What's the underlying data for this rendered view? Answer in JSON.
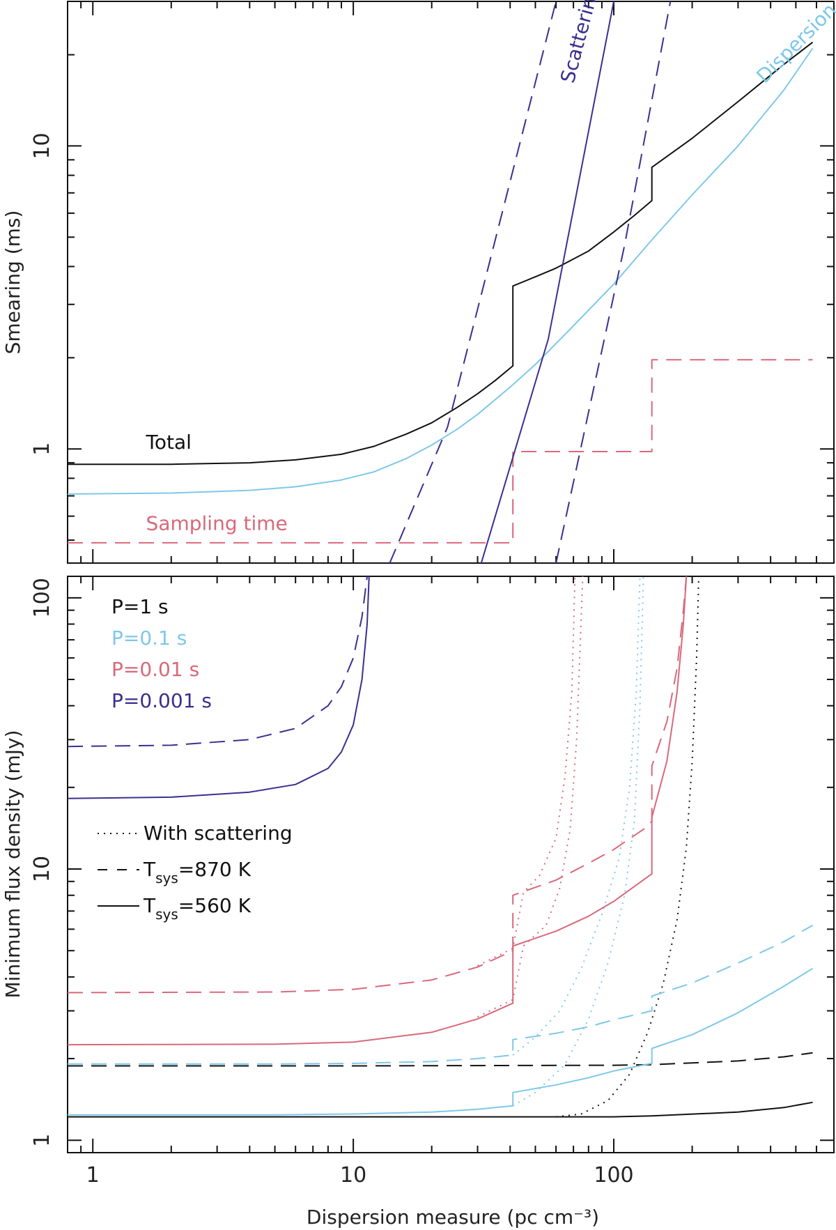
{
  "colors": {
    "black": "#111111",
    "light_blue": "#7ec8ea",
    "pink": "#d9687a",
    "navy": "#3a2f8f"
  },
  "chart_data": [
    {
      "type": "line",
      "panel": "top",
      "xscale": "log",
      "yscale": "log",
      "xlim": [
        0.8,
        700
      ],
      "ylim": [
        0.42,
        30
      ],
      "xlabel": "",
      "ylabel": "Smearing (ms)",
      "xticks": [],
      "yticks": [
        1,
        10
      ],
      "yticklabels": [
        "1",
        "10"
      ],
      "annotations": [
        {
          "text": "Total",
          "color": "#111111",
          "x": 1.6,
          "y": 1.0
        },
        {
          "text": "Sampling time",
          "color": "#d9687a",
          "x": 1.6,
          "y": 0.54
        },
        {
          "text": "Scattering",
          "color": "#3a2f8f",
          "x": 70,
          "y": 16,
          "rotate": -75
        },
        {
          "text": "Dispersion",
          "color": "#7ec8ea",
          "x": 380,
          "y": 16,
          "rotate": -45
        }
      ],
      "series": [
        {
          "name": "Total",
          "color": "#111111",
          "style": "solid",
          "points": [
            [
              0.8,
              0.89
            ],
            [
              2,
              0.89
            ],
            [
              4,
              0.9
            ],
            [
              6,
              0.92
            ],
            [
              9,
              0.96
            ],
            [
              12,
              1.02
            ],
            [
              16,
              1.12
            ],
            [
              20,
              1.22
            ],
            [
              25,
              1.37
            ],
            [
              30,
              1.52
            ],
            [
              35,
              1.68
            ],
            [
              41,
              1.88
            ],
            [
              41,
              3.45
            ],
            [
              50,
              3.7
            ],
            [
              60,
              3.95
            ],
            [
              80,
              4.5
            ],
            [
              100,
              5.2
            ],
            [
              120,
              5.9
            ],
            [
              140,
              6.6
            ],
            [
              140,
              8.5
            ],
            [
              200,
              10.6
            ],
            [
              300,
              14.0
            ],
            [
              450,
              18.6
            ],
            [
              580,
              22.0
            ]
          ]
        },
        {
          "name": "Dispersion",
          "color": "#7ec8ea",
          "style": "solid",
          "points": [
            [
              0.8,
              0.71
            ],
            [
              2,
              0.715
            ],
            [
              4,
              0.73
            ],
            [
              6,
              0.75
            ],
            [
              9,
              0.79
            ],
            [
              12,
              0.84
            ],
            [
              16,
              0.93
            ],
            [
              20,
              1.03
            ],
            [
              25,
              1.16
            ],
            [
              30,
              1.3
            ],
            [
              40,
              1.6
            ],
            [
              50,
              1.9
            ],
            [
              70,
              2.55
            ],
            [
              100,
              3.5
            ],
            [
              140,
              4.9
            ],
            [
              200,
              6.9
            ],
            [
              300,
              10.0
            ],
            [
              450,
              15.3
            ],
            [
              580,
              21.0
            ]
          ]
        },
        {
          "name": "Sampling time",
          "color": "#d9687a",
          "style": "dashed",
          "points": [
            [
              0.8,
              0.49
            ],
            [
              41,
              0.49
            ],
            [
              41,
              0.98
            ],
            [
              140,
              0.98
            ],
            [
              140,
              1.97
            ],
            [
              580,
              1.97
            ]
          ]
        },
        {
          "name": "Scattering",
          "color": "#3a2f8f",
          "style": "solid",
          "points": [
            [
              31,
              0.42
            ],
            [
              56,
              2.3
            ],
            [
              100,
              30
            ]
          ]
        },
        {
          "name": "Scattering (low bound)",
          "color": "#3a2f8f",
          "style": "dashed",
          "points": [
            [
              13.8,
              0.42
            ],
            [
              23,
              1.18
            ],
            [
              60,
              30
            ]
          ]
        },
        {
          "name": "Scattering (high bound)",
          "color": "#3a2f8f",
          "style": "dashed",
          "points": [
            [
              60,
              0.42
            ],
            [
              110,
              4.7
            ],
            [
              165,
              30
            ]
          ]
        }
      ]
    },
    {
      "type": "line",
      "panel": "bottom",
      "xscale": "log",
      "yscale": "log",
      "xlim": [
        0.8,
        700
      ],
      "ylim": [
        0.9,
        120
      ],
      "xlabel": "Dispersion measure (pc cm⁻³)",
      "ylabel": "Minimum flux density (mJy)",
      "xticks": [
        1,
        10,
        100
      ],
      "xticklabels": [
        "1",
        "10",
        "100"
      ],
      "yticks": [
        1,
        10,
        100
      ],
      "yticklabels": [
        "1",
        "10",
        "100"
      ],
      "legend_periods": [
        {
          "text": "P=1 s",
          "color": "#111111"
        },
        {
          "text": "P=0.1 s",
          "color": "#7ec8ea"
        },
        {
          "text": "P=0.01 s",
          "color": "#d9687a"
        },
        {
          "text": "P=0.001 s",
          "color": "#3a2f8f"
        }
      ],
      "legend_styles": [
        {
          "text": "With scattering",
          "style": "dotted"
        },
        {
          "text_main": "T",
          "text_sub": "sys",
          "text_rest": "=870 K",
          "style": "dashed"
        },
        {
          "text_main": "T",
          "text_sub": "sys",
          "text_rest": "=560 K",
          "style": "solid"
        }
      ],
      "series": [
        {
          "name": "P=1 s, Tsys=560 K",
          "color": "#111111",
          "style": "solid",
          "points": [
            [
              0.8,
              1.22
            ],
            [
              10,
              1.22
            ],
            [
              100,
              1.22
            ],
            [
              140,
              1.23
            ],
            [
              300,
              1.27
            ],
            [
              450,
              1.32
            ],
            [
              580,
              1.38
            ]
          ]
        },
        {
          "name": "P=1 s, Tsys=870 K",
          "color": "#111111",
          "style": "dashed",
          "points": [
            [
              0.8,
              1.88
            ],
            [
              10,
              1.88
            ],
            [
              100,
              1.89
            ],
            [
              140,
              1.9
            ],
            [
              300,
              1.96
            ],
            [
              450,
              2.03
            ],
            [
              580,
              2.1
            ]
          ]
        },
        {
          "name": "P=1 s, with scattering",
          "color": "#111111",
          "style": "dotted",
          "points": [
            [
              60,
              1.22
            ],
            [
              75,
              1.25
            ],
            [
              95,
              1.4
            ],
            [
              115,
              1.75
            ],
            [
              135,
              2.5
            ],
            [
              155,
              3.8
            ],
            [
              175,
              6.5
            ],
            [
              190,
              12
            ],
            [
              200,
              25
            ],
            [
              208,
              60
            ],
            [
              212,
              120
            ]
          ]
        },
        {
          "name": "P=0.1 s, Tsys=560 K",
          "color": "#7ec8ea",
          "style": "solid",
          "points": [
            [
              0.8,
              1.24
            ],
            [
              5,
              1.24
            ],
            [
              10,
              1.25
            ],
            [
              20,
              1.27
            ],
            [
              30,
              1.3
            ],
            [
              41,
              1.34
            ],
            [
              41,
              1.5
            ],
            [
              60,
              1.6
            ],
            [
              80,
              1.7
            ],
            [
              100,
              1.8
            ],
            [
              140,
              1.92
            ],
            [
              140,
              2.18
            ],
            [
              200,
              2.45
            ],
            [
              300,
              2.95
            ],
            [
              450,
              3.7
            ],
            [
              580,
              4.3
            ]
          ]
        },
        {
          "name": "P=0.1 s, Tsys=870 K",
          "color": "#7ec8ea",
          "style": "dashed",
          "points": [
            [
              0.8,
              1.91
            ],
            [
              5,
              1.91
            ],
            [
              10,
              1.92
            ],
            [
              20,
              1.95
            ],
            [
              30,
              2.0
            ],
            [
              41,
              2.06
            ],
            [
              41,
              2.35
            ],
            [
              60,
              2.48
            ],
            [
              80,
              2.62
            ],
            [
              100,
              2.78
            ],
            [
              140,
              3.0
            ],
            [
              140,
              3.4
            ],
            [
              200,
              3.8
            ],
            [
              300,
              4.5
            ],
            [
              450,
              5.4
            ],
            [
              580,
              6.2
            ]
          ]
        },
        {
          "name": "P=0.1 s, with scattering (560 K)",
          "color": "#7ec8ea",
          "style": "dotted",
          "points": [
            [
              41,
              1.34
            ],
            [
              50,
              1.5
            ],
            [
              65,
              1.9
            ],
            [
              80,
              2.8
            ],
            [
              95,
              4.5
            ],
            [
              110,
              8
            ],
            [
              120,
              15
            ],
            [
              126,
              40
            ],
            [
              130,
              120
            ]
          ]
        },
        {
          "name": "P=0.1 s, with scattering (870 K)",
          "color": "#7ec8ea",
          "style": "dotted",
          "points": [
            [
              41,
              2.06
            ],
            [
              50,
              2.4
            ],
            [
              62,
              3.0
            ],
            [
              75,
              4.3
            ],
            [
              90,
              6.8
            ],
            [
              105,
              11
            ],
            [
              115,
              20
            ],
            [
              122,
              45
            ],
            [
              126,
              120
            ]
          ]
        },
        {
          "name": "P=0.01 s, Tsys=560 K",
          "color": "#d9687a",
          "style": "solid",
          "points": [
            [
              0.8,
              2.25
            ],
            [
              5,
              2.26
            ],
            [
              10,
              2.3
            ],
            [
              20,
              2.5
            ],
            [
              30,
              2.8
            ],
            [
              41,
              3.2
            ],
            [
              41,
              5.2
            ],
            [
              60,
              5.9
            ],
            [
              80,
              6.7
            ],
            [
              100,
              7.6
            ],
            [
              140,
              9.6
            ],
            [
              140,
              15.5
            ],
            [
              160,
              25
            ],
            [
              175,
              45
            ],
            [
              185,
              80
            ],
            [
              190,
              120
            ]
          ]
        },
        {
          "name": "P=0.01 s, Tsys=870 K",
          "color": "#d9687a",
          "style": "dashed",
          "points": [
            [
              0.8,
              3.5
            ],
            [
              5,
              3.52
            ],
            [
              10,
              3.6
            ],
            [
              20,
              3.9
            ],
            [
              30,
              4.35
            ],
            [
              41,
              5.0
            ],
            [
              41,
              8.0
            ],
            [
              60,
              9.1
            ],
            [
              80,
              10.5
            ],
            [
              100,
              11.8
            ],
            [
              130,
              14.0
            ],
            [
              140,
              15.0
            ],
            [
              140,
              24
            ],
            [
              160,
              35
            ],
            [
              175,
              55
            ],
            [
              185,
              90
            ],
            [
              190,
              120
            ]
          ]
        },
        {
          "name": "P=0.01 s, with scattering (560 K)",
          "color": "#d9687a",
          "style": "dotted",
          "points": [
            [
              30,
              2.85
            ],
            [
              41,
              3.3
            ],
            [
              45,
              5.2
            ],
            [
              55,
              6.2
            ],
            [
              62,
              8.5
            ],
            [
              68,
              14
            ],
            [
              72,
              30
            ],
            [
              74,
              60
            ],
            [
              76,
              120
            ]
          ]
        },
        {
          "name": "P=0.01 s, with scattering (870 K)",
          "color": "#d9687a",
          "style": "dotted",
          "points": [
            [
              30,
              4.4
            ],
            [
              41,
              5.1
            ],
            [
              45,
              8.2
            ],
            [
              52,
              9.5
            ],
            [
              60,
              13
            ],
            [
              65,
              22
            ],
            [
              69,
              45
            ],
            [
              71,
              120
            ]
          ]
        },
        {
          "name": "P=0.001 s, Tsys=560 K",
          "color": "#3a2f8f",
          "style": "solid",
          "points": [
            [
              0.8,
              18.2
            ],
            [
              2,
              18.4
            ],
            [
              4,
              19.2
            ],
            [
              6,
              20.5
            ],
            [
              8,
              23.5
            ],
            [
              9,
              27
            ],
            [
              10,
              34
            ],
            [
              10.8,
              50
            ],
            [
              11.3,
              80
            ],
            [
              11.5,
              120
            ]
          ]
        },
        {
          "name": "P=0.001 s, Tsys=870 K",
          "color": "#3a2f8f",
          "style": "dashed",
          "points": [
            [
              0.8,
              28.3
            ],
            [
              2,
              28.6
            ],
            [
              4,
              30
            ],
            [
              6,
              33
            ],
            [
              8,
              40
            ],
            [
              9,
              47
            ],
            [
              10,
              60
            ],
            [
              10.8,
              85
            ],
            [
              11.3,
              120
            ]
          ]
        }
      ]
    }
  ]
}
